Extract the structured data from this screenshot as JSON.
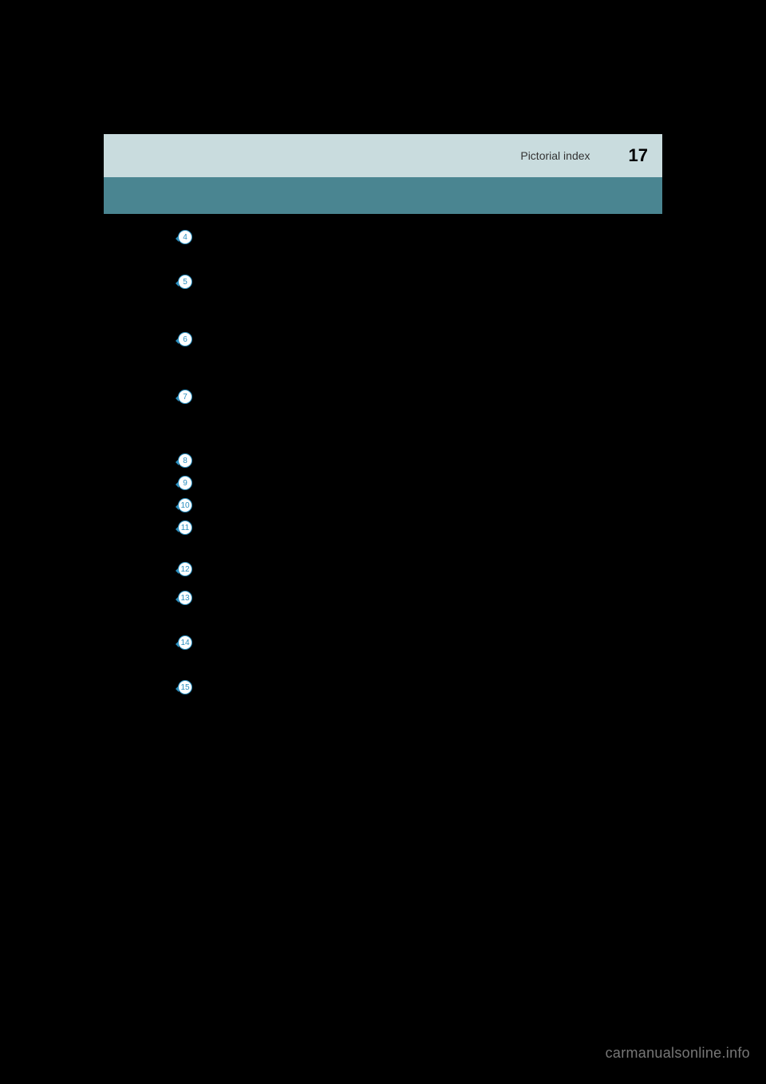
{
  "header": {
    "section_label": "Pictorial index",
    "page_number": "17"
  },
  "badges": [
    {
      "num": "4",
      "gap_after": 34
    },
    {
      "num": "5",
      "gap_after": 50
    },
    {
      "num": "6",
      "gap_after": 50
    },
    {
      "num": "7",
      "gap_after": 58
    },
    {
      "num": "8",
      "gap_after": 6
    },
    {
      "num": "9",
      "gap_after": 6
    },
    {
      "num": "10",
      "gap_after": 6
    },
    {
      "num": "11",
      "gap_after": 30
    },
    {
      "num": "12",
      "gap_after": 14
    },
    {
      "num": "13",
      "gap_after": 34
    },
    {
      "num": "14",
      "gap_after": 34
    },
    {
      "num": "15",
      "gap_after": 0
    }
  ],
  "badge_colors": {
    "border": "#2b8fbf",
    "text": "#2b8fbf",
    "background": "#ffffff"
  },
  "watermark": "carmanualsonline.info",
  "colors": {
    "page_bg": "#000000",
    "header_light_bg": "#c9dcde",
    "header_dark_bg": "#4a8591"
  }
}
